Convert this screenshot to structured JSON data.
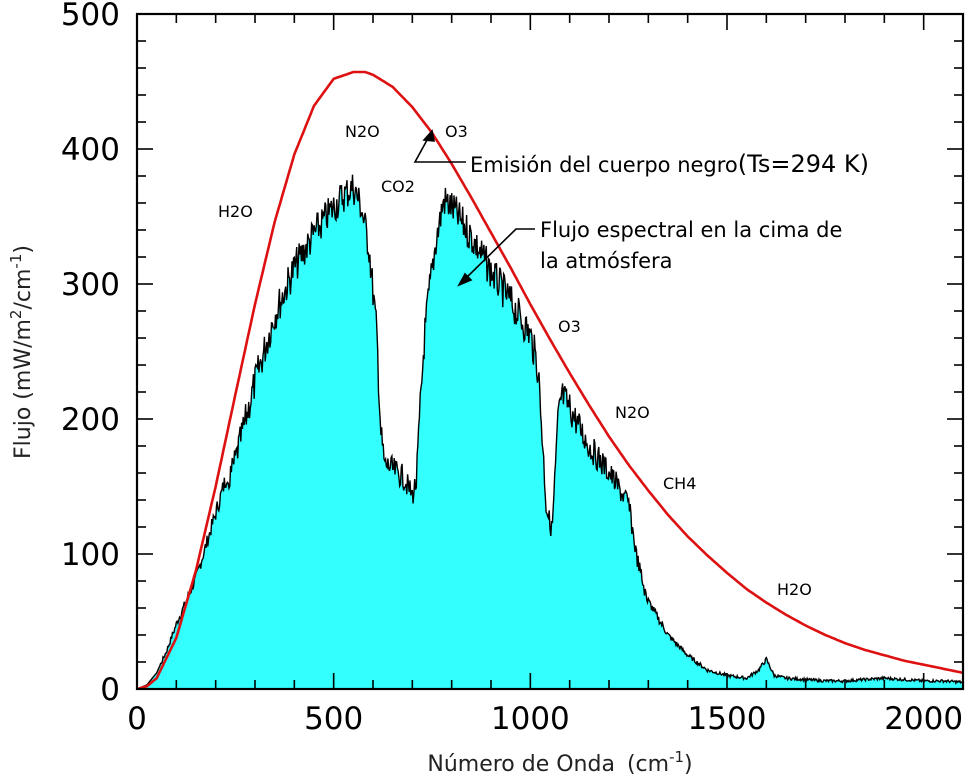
{
  "chart_data": {
    "type": "area",
    "xlabel": "Número de Onda",
    "xlabel_unit_base": "(cm",
    "xlabel_unit_exp": "-1",
    "xlabel_unit_close": ")",
    "ylabel_prefix": "Flujo  (mW/m",
    "ylabel_exp1": "2",
    "ylabel_mid": "/cm",
    "ylabel_exp2": "-1",
    "ylabel_close": ")",
    "xlim": [
      0,
      2100
    ],
    "ylim": [
      0,
      500
    ],
    "xticks": [
      "0",
      "500",
      "1000",
      "1500",
      "2000"
    ],
    "xtick_values": [
      0,
      500,
      1000,
      1500,
      2000
    ],
    "yticks": [
      "0",
      "100",
      "200",
      "300",
      "400",
      "500"
    ],
    "ytick_values": [
      0,
      100,
      200,
      300,
      400,
      500
    ],
    "grid": false,
    "blackbody_color": "#dd1111",
    "toa_fill_color": "#33ffff",
    "toa_line_color": "#000000",
    "series": [
      {
        "kind": "blackbody_curve",
        "temperature_K": 294,
        "x": [
          0,
          25,
          50,
          100,
          150,
          200,
          250,
          300,
          350,
          400,
          450,
          500,
          550,
          580,
          600,
          650,
          700,
          750,
          800,
          850,
          900,
          950,
          1000,
          1050,
          1100,
          1150,
          1200,
          1250,
          1300,
          1350,
          1400,
          1450,
          1500,
          1550,
          1600,
          1650,
          1700,
          1750,
          1800,
          1850,
          1900,
          1950,
          2000,
          2050,
          2100
        ],
        "y": [
          0,
          2,
          8,
          38,
          88,
          150,
          218,
          285,
          346,
          396,
          432,
          452,
          457,
          457,
          455,
          446,
          431,
          412,
          389,
          364,
          338,
          312,
          285,
          259,
          234,
          210,
          187,
          166,
          147,
          129,
          113,
          99,
          86,
          74,
          64,
          55,
          47,
          40,
          34,
          29,
          25,
          21,
          18,
          15,
          12
        ]
      },
      {
        "kind": "toa_spectral_flux",
        "x": [
          0,
          25,
          50,
          75,
          100,
          150,
          200,
          250,
          300,
          350,
          400,
          450,
          500,
          530,
          550,
          570,
          590,
          610,
          620,
          630,
          640,
          650,
          660,
          670,
          680,
          690,
          700,
          710,
          720,
          730,
          740,
          760,
          780,
          800,
          850,
          900,
          950,
          1000,
          1020,
          1030,
          1040,
          1050,
          1055,
          1060,
          1070,
          1080,
          1100,
          1150,
          1200,
          1250,
          1270,
          1300,
          1350,
          1400,
          1450,
          1500,
          1550,
          1580,
          1600,
          1620,
          1650,
          1700,
          1750,
          1800,
          1850,
          1900,
          1950,
          2000,
          2050,
          2100
        ],
        "y": [
          0,
          3,
          12,
          28,
          48,
          82,
          130,
          180,
          240,
          290,
          325,
          350,
          370,
          380,
          385,
          370,
          340,
          275,
          200,
          175,
          175,
          172,
          170,
          168,
          165,
          158,
          152,
          162,
          220,
          270,
          300,
          345,
          375,
          370,
          348,
          322,
          300,
          275,
          250,
          200,
          145,
          130,
          125,
          150,
          210,
          230,
          220,
          190,
          170,
          145,
          105,
          65,
          40,
          25,
          14,
          10,
          8,
          14,
          22,
          10,
          8,
          7,
          6,
          6,
          7,
          8,
          7,
          6,
          6,
          5
        ]
      }
    ],
    "annotations": {
      "h2o_left": "H2O",
      "n2o_top": "N2O",
      "o3_top": "O3",
      "co2": "CO2",
      "blackbody_label_prefix": "Emisión del cuerpo negro",
      "blackbody_label_temp": "(Ts=294 K)",
      "toa_label_line1": "Flujo espectral en la cima de",
      "toa_label_line2": "la atmósfera",
      "o3_right": "O3",
      "n2o_right": "N2O",
      "ch4": "CH4",
      "h2o_right": "H2O"
    }
  }
}
